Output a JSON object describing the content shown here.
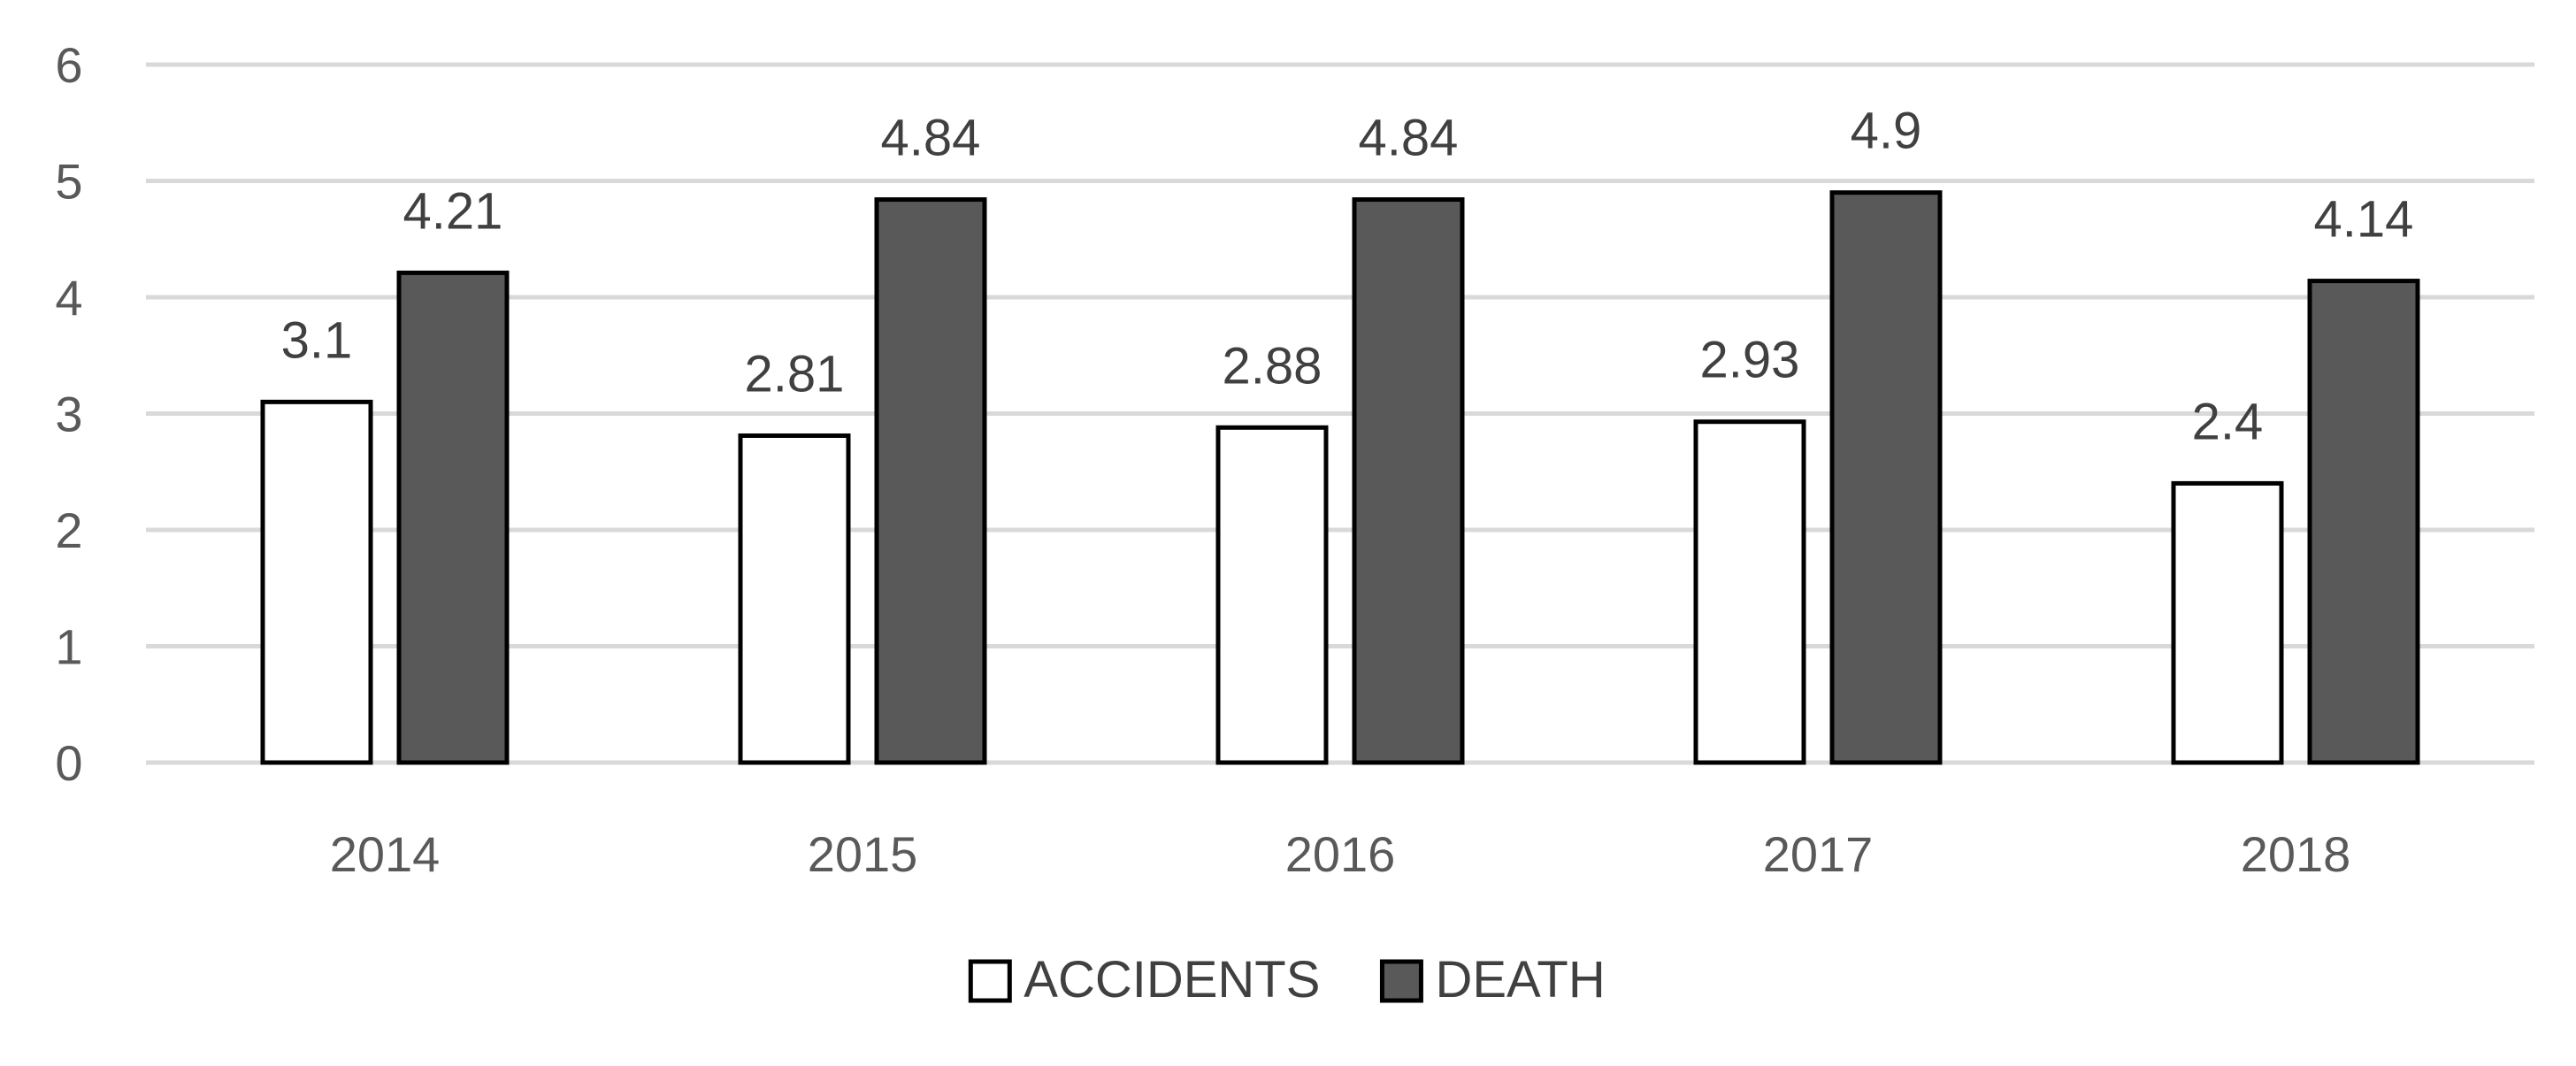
{
  "chart_data": {
    "type": "bar",
    "title": "",
    "xlabel": "",
    "ylabel": "",
    "categories": [
      "2014",
      "2015",
      "2016",
      "2017",
      "2018"
    ],
    "series": [
      {
        "name": "ACCIDENTS",
        "values": [
          3.1,
          2.81,
          2.88,
          2.93,
          2.4
        ],
        "color": "#ffffff",
        "labels": [
          "3.1",
          "2.81",
          "2.88",
          "2.93",
          "2.4"
        ]
      },
      {
        "name": "DEATH",
        "values": [
          4.21,
          4.84,
          4.84,
          4.9,
          4.14
        ],
        "color": "#595959",
        "labels": [
          "4.21",
          "4.84",
          "4.84",
          "4.9",
          "4.14"
        ]
      }
    ],
    "ylim": [
      0,
      6
    ],
    "yticks": [
      "0",
      "1",
      "2",
      "3",
      "4",
      "5",
      "6"
    ],
    "grid": true,
    "legend": "bottom",
    "bar_outline_color": "#000000",
    "gridline_color": "#d9d9d9"
  }
}
